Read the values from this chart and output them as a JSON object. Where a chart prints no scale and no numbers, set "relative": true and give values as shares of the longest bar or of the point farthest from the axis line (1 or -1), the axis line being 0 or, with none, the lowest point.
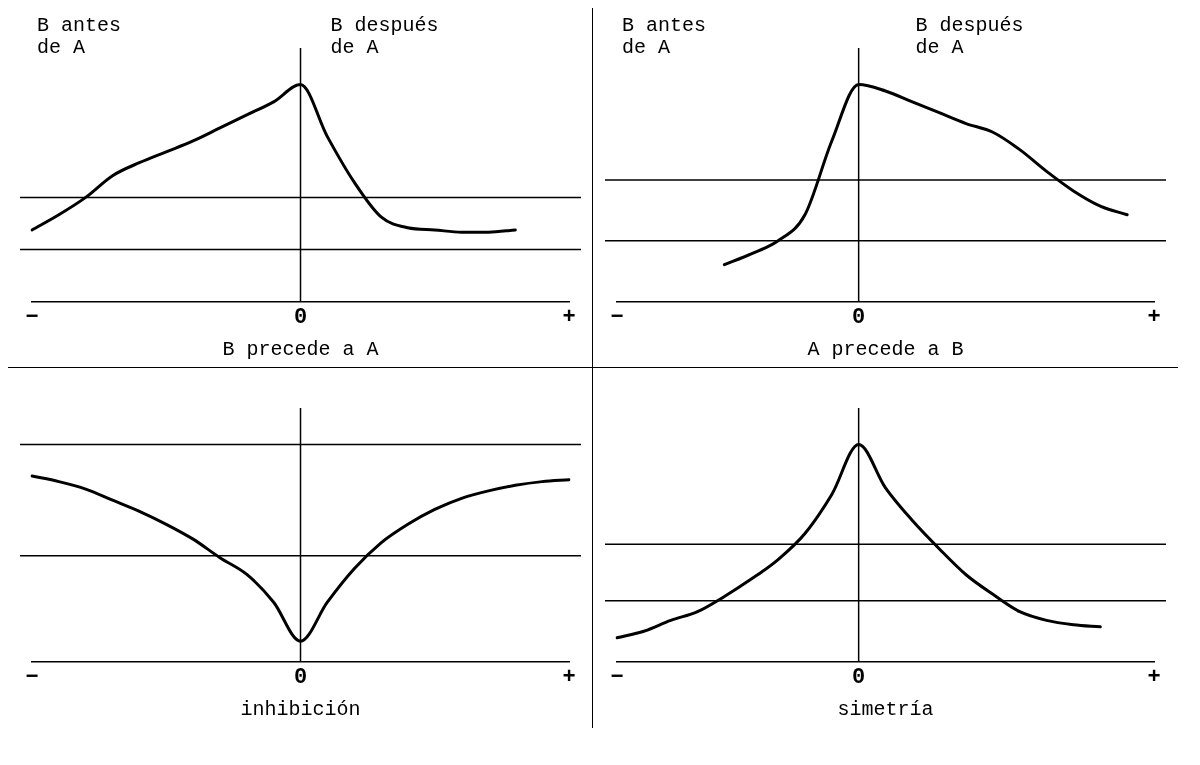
{
  "chart_data": [
    {
      "type": "line",
      "xlabel": "B precede a A",
      "annotations": [
        "B antes\nde A",
        "B después\nde A"
      ],
      "relative": true,
      "grid": false,
      "legend": false,
      "marker": "none",
      "line_style": "solid",
      "categories": [
        "−",
        null,
        null,
        null,
        null,
        null,
        null,
        null,
        null,
        null,
        "0",
        null,
        null,
        null,
        null,
        null,
        null,
        null,
        null,
        null,
        "+"
      ],
      "ref_lines": [
        {
          "axis": "y",
          "value": 0.24,
          "color": "#000000"
        },
        {
          "axis": "y",
          "value": 0.48,
          "color": "#000000"
        },
        {
          "axis": "x",
          "value": "0",
          "color": "#000000"
        }
      ],
      "series": [
        {
          "color": "#000000",
          "values": [
            0.33,
            0.4,
            0.48,
            0.58,
            0.64,
            0.69,
            0.74,
            0.8,
            0.86,
            0.92,
            1,
            0.76,
            0.55,
            0.39,
            0.34,
            0.33,
            0.32,
            0.32,
            0.33,
            null,
            null
          ]
        }
      ]
    },
    {
      "type": "line",
      "xlabel": "A precede a B",
      "annotations": [
        "B antes\nde A",
        "B después\nde A"
      ],
      "relative": true,
      "grid": false,
      "legend": false,
      "marker": "none",
      "line_style": "solid",
      "categories": [
        "−",
        null,
        null,
        null,
        null,
        null,
        null,
        null,
        null,
        "0",
        null,
        null,
        null,
        null,
        null,
        null,
        null,
        null,
        null,
        null,
        "+"
      ],
      "ref_lines": [
        {
          "axis": "y",
          "value": 0.28,
          "color": "#000000"
        },
        {
          "axis": "y",
          "value": 0.56,
          "color": "#000000"
        },
        {
          "axis": "x",
          "value": "0",
          "color": "#000000"
        }
      ],
      "series": [
        {
          "color": "#000000",
          "values": [
            null,
            null,
            null,
            null,
            0.17,
            0.22,
            0.28,
            0.4,
            0.74,
            1,
            0.97,
            0.92,
            0.87,
            0.82,
            0.78,
            0.7,
            0.6,
            0.51,
            0.44,
            0.4,
            null
          ]
        }
      ]
    },
    {
      "type": "line",
      "xlabel": "inhibición",
      "relative": true,
      "grid": false,
      "legend": false,
      "marker": "none",
      "line_style": "solid",
      "categories": [
        "−",
        null,
        null,
        null,
        null,
        null,
        null,
        null,
        null,
        null,
        "0",
        null,
        null,
        null,
        null,
        null,
        null,
        null,
        null,
        null,
        "+"
      ],
      "ref_lines": [
        {
          "axis": "y",
          "value": 0.57,
          "color": "#000000"
        },
        {
          "axis": "y",
          "value": 1.17,
          "color": "#000000"
        },
        {
          "axis": "x",
          "value": "0",
          "color": "#000000"
        }
      ],
      "series": [
        {
          "color": "#000000",
          "values": [
            1.0,
            0.97,
            0.93,
            0.87,
            0.81,
            0.74,
            0.66,
            0.56,
            0.47,
            0.32,
            0.11,
            0.32,
            0.5,
            0.64,
            0.74,
            0.82,
            0.88,
            0.92,
            0.95,
            0.97,
            0.98
          ]
        }
      ]
    },
    {
      "type": "line",
      "xlabel": "simetría",
      "relative": true,
      "grid": false,
      "legend": false,
      "marker": "none",
      "line_style": "solid",
      "categories": [
        "−",
        null,
        null,
        null,
        null,
        null,
        null,
        null,
        null,
        "0",
        null,
        null,
        null,
        null,
        null,
        null,
        null,
        null,
        null,
        null,
        "+"
      ],
      "ref_lines": [
        {
          "axis": "y",
          "value": 0.28,
          "color": "#000000"
        },
        {
          "axis": "y",
          "value": 0.54,
          "color": "#000000"
        },
        {
          "axis": "x",
          "value": "0",
          "color": "#000000"
        }
      ],
      "series": [
        {
          "color": "#000000",
          "values": [
            0.11,
            0.14,
            0.19,
            0.23,
            0.3,
            0.38,
            0.47,
            0.59,
            0.77,
            1,
            0.8,
            0.65,
            0.52,
            0.4,
            0.31,
            0.23,
            0.19,
            0.17,
            0.16,
            null,
            null
          ]
        }
      ]
    }
  ]
}
